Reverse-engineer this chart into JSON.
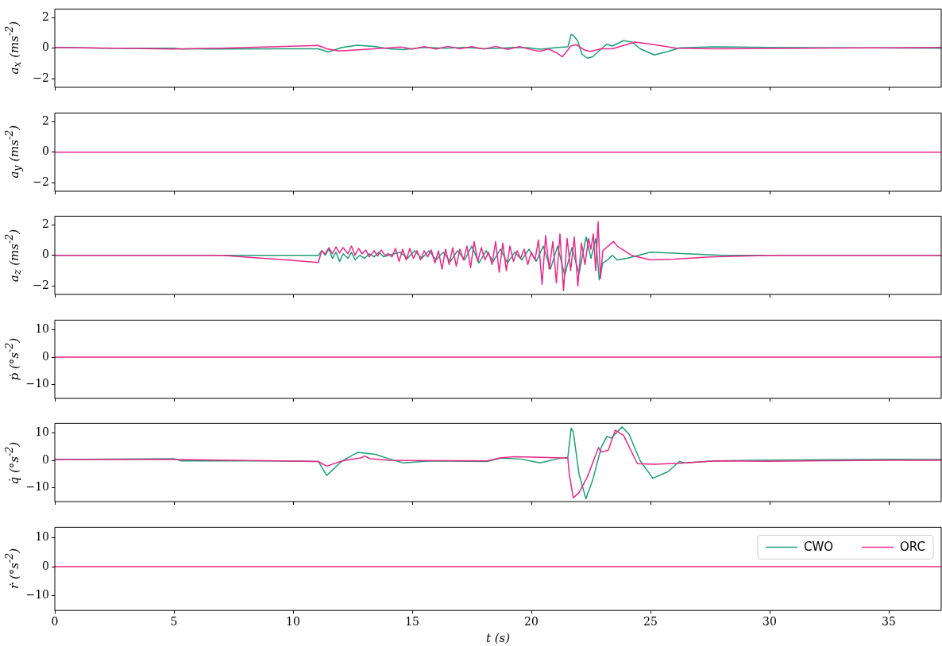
{
  "chart_data": [
    {
      "type": "line",
      "ylabel": "a$_{x}$ (ms$^{-2}$)",
      "xlim": [
        0,
        37.2
      ],
      "xticks": [
        0,
        5,
        10,
        15,
        20,
        25,
        30,
        35
      ],
      "ylim": [
        -2.55,
        2.55
      ],
      "yticks": [
        -2,
        0,
        2
      ],
      "tick_labels": "y",
      "grid": false,
      "series": [
        {
          "color": "#1b9e77",
          "x": [
            0,
            2,
            5,
            5.3,
            9.37,
            11.06,
            11.47,
            12.06,
            12.7,
            13.46,
            14.05,
            14.63,
            15.5,
            16.38,
            17.2,
            18.0,
            18.72,
            19.3,
            19.89,
            20.36,
            21.06,
            21.53,
            21.67,
            21.76,
            21.94,
            22.12,
            22.35,
            22.58,
            22.93,
            23.17,
            23.4,
            23.87,
            24.22,
            24.57,
            25.16,
            25.74,
            26.21,
            27.71,
            30,
            37.2
          ],
          "values": [
            0.05,
            0,
            0,
            -0.05,
            -0.04,
            -0.04,
            -0.25,
            0.05,
            0.19,
            0.1,
            -0.04,
            -0.09,
            0.05,
            0,
            0.05,
            -0.03,
            0,
            0.05,
            0.02,
            -0.07,
            0.04,
            0.09,
            0.88,
            0.84,
            0.49,
            -0.39,
            -0.65,
            -0.56,
            -0.04,
            0.26,
            0.14,
            0.49,
            0.4,
            -0.04,
            -0.44,
            -0.21,
            0.02,
            0.09,
            0.05,
            0
          ]
        },
        {
          "color": "#e7298a",
          "x": [
            0,
            5,
            7,
            9.37,
            11.06,
            11.41,
            11.94,
            12.88,
            13.81,
            14.5,
            15.0,
            15.5,
            16.0,
            16.5,
            17.0,
            17.5,
            18.0,
            18.5,
            19.0,
            19.5,
            20.0,
            20.36,
            20.7,
            21.06,
            21.3,
            21.53,
            21.65,
            21.88,
            22.23,
            22.47,
            22.93,
            23.4,
            24.34,
            25.16,
            26.09,
            27.71,
            37.2
          ],
          "values": [
            0.05,
            -0.05,
            0,
            0.1,
            0.18,
            -0.04,
            -0.18,
            -0.09,
            0,
            0.08,
            -0.06,
            0.1,
            -0.05,
            0.12,
            -0.04,
            0.1,
            -0.06,
            0.12,
            -0.08,
            0.1,
            -0.1,
            -0.21,
            -0.05,
            -0.3,
            -0.56,
            -0.12,
            0.14,
            0.23,
            -0.12,
            -0.21,
            -0.04,
            -0.04,
            0.4,
            0.23,
            0,
            -0.04,
            0.05
          ]
        }
      ]
    },
    {
      "type": "line",
      "ylabel": "a$_{y}$ (ms$^{-2}$)",
      "xlim": [
        0,
        37.2
      ],
      "xticks": [
        0,
        5,
        10,
        15,
        20,
        25,
        30,
        35
      ],
      "ylim": [
        -2.55,
        2.55
      ],
      "yticks": [
        -2,
        0,
        2
      ],
      "tick_labels": "y",
      "grid": false,
      "series": [
        {
          "color": "#1b9e77",
          "values": [
            null,
            null
          ]
        },
        {
          "color": "#e7298a",
          "x": [
            0,
            37.2
          ],
          "values": [
            0,
            0
          ]
        }
      ]
    },
    {
      "type": "line",
      "ylabel": "a$_{z}$ (ms$^{-2}$)",
      "xlim": [
        0,
        37.2
      ],
      "xticks": [
        0,
        5,
        10,
        15,
        20,
        25,
        30,
        35
      ],
      "ylim": [
        -2.55,
        2.55
      ],
      "yticks": [
        -2,
        0,
        2
      ],
      "tick_labels": "y",
      "grid": false,
      "series": [
        {
          "color": "#1b9e77",
          "x": [
            0,
            11.06,
            11.2,
            11.35,
            11.5,
            11.65,
            11.8,
            11.95,
            12.1,
            12.3,
            12.45,
            12.6,
            12.8,
            13.0,
            13.2,
            13.4,
            13.6,
            13.8,
            14.0,
            14.5,
            14.8,
            15.1,
            15.4,
            15.7,
            16.0,
            16.3,
            16.6,
            16.9,
            17.2,
            17.5,
            17.8,
            18.1,
            18.4,
            18.7,
            19.0,
            19.3,
            19.6,
            19.9,
            20.2,
            20.5,
            20.8,
            21.1,
            21.4,
            21.7,
            22.0,
            22.3,
            22.5,
            22.7,
            22.85,
            23.0,
            23.2,
            23.4,
            23.6,
            24.0,
            24.5,
            25.0,
            25.8,
            26.5,
            28,
            37.2
          ],
          "values": [
            0,
            0,
            0.3,
            0,
            0.4,
            -0.2,
            0.2,
            -0.4,
            0.1,
            -0.2,
            0.2,
            -0.3,
            0,
            -0.2,
            0.1,
            -0.1,
            0.2,
            -0.1,
            0,
            0.2,
            -0.2,
            0.3,
            -0.2,
            0.3,
            -0.3,
            0.2,
            -0.4,
            0.3,
            -0.3,
            0.6,
            -0.5,
            0.3,
            -0.4,
            0.4,
            -0.5,
            0.2,
            -0.3,
            0.4,
            -0.4,
            0.6,
            -0.9,
            0.6,
            -1.3,
            0.5,
            -1.2,
            1.2,
            -0.2,
            1.1,
            -1.6,
            -0.5,
            -0.3,
            0,
            -0.3,
            -0.2,
            0,
            0.2,
            0.15,
            0.1,
            0,
            0
          ]
        },
        {
          "color": "#e7298a",
          "x": [
            0,
            7,
            9.7,
            11.06,
            11.2,
            11.35,
            11.5,
            11.65,
            11.8,
            11.95,
            12.1,
            12.3,
            12.45,
            12.6,
            12.75,
            12.9,
            13.05,
            13.2,
            13.4,
            13.55,
            13.7,
            13.85,
            14.0,
            14.15,
            14.3,
            14.45,
            14.6,
            14.75,
            14.9,
            15.05,
            15.2,
            15.35,
            15.5,
            15.65,
            15.8,
            15.95,
            16.1,
            16.25,
            16.4,
            16.55,
            16.7,
            16.85,
            17.0,
            17.15,
            17.3,
            17.45,
            17.6,
            17.75,
            17.9,
            18.05,
            18.2,
            18.35,
            18.5,
            18.65,
            18.8,
            18.95,
            19.1,
            19.25,
            19.4,
            19.55,
            19.7,
            19.85,
            20.0,
            20.15,
            20.3,
            20.45,
            20.6,
            20.75,
            20.9,
            21.05,
            21.2,
            21.35,
            21.5,
            21.65,
            21.8,
            21.95,
            22.1,
            22.25,
            22.4,
            22.5,
            22.6,
            22.7,
            22.8,
            22.9,
            23.0,
            23.15,
            23.3,
            23.45,
            23.6,
            24.2,
            25.0,
            26.0,
            27.5,
            30,
            37.2
          ],
          "values": [
            0,
            0,
            -0.3,
            -0.47,
            0.3,
            0.1,
            0.5,
            0.1,
            0.55,
            0.15,
            0.5,
            0.1,
            0.6,
            0,
            0.45,
            0.1,
            0.35,
            -0.1,
            0.3,
            -0.05,
            0.35,
            0,
            0.1,
            -0.1,
            0.45,
            -0.4,
            0.4,
            -0.3,
            0.45,
            -0.2,
            0.3,
            -0.3,
            0.3,
            -0.1,
            0.35,
            -0.5,
            0.3,
            -0.9,
            0.4,
            -0.6,
            0.5,
            -0.7,
            0.4,
            -0.3,
            0.6,
            -0.8,
            0.9,
            -0.4,
            0.5,
            -0.3,
            0.2,
            -0.6,
            0.9,
            -1.1,
            0.8,
            -1.0,
            0.6,
            -0.4,
            0.3,
            -0.2,
            0.4,
            -0.6,
            0.2,
            -0.3,
            1.0,
            -1.9,
            1.3,
            -0.9,
            0.9,
            -1.8,
            1.4,
            -2.3,
            1.1,
            -1.0,
            1.2,
            -2.0,
            0.8,
            -0.6,
            1.1,
            0.4,
            1.4,
            -1.0,
            2.2,
            -1.5,
            0.3,
            0.5,
            0.7,
            0.9,
            0.6,
            0,
            -0.3,
            -0.25,
            -0.1,
            0,
            0
          ]
        }
      ]
    },
    {
      "type": "line",
      "ylabel": "ṗ (°s$^{-2}$)",
      "xlim": [
        0,
        37.2
      ],
      "xticks": [
        0,
        5,
        10,
        15,
        20,
        25,
        30,
        35
      ],
      "ylim": [
        -15,
        13.5
      ],
      "yticks": [
        -10,
        0,
        10
      ],
      "tick_labels": "y",
      "grid": false,
      "series": [
        {
          "color": "#1b9e77",
          "values": [
            null,
            null
          ]
        },
        {
          "color": "#e7298a",
          "x": [
            0,
            37.2
          ],
          "values": [
            0,
            0
          ]
        }
      ]
    },
    {
      "type": "line",
      "ylabel": "q̇ (°s$^{-2}$)",
      "xlim": [
        0,
        37.2
      ],
      "xticks": [
        0,
        5,
        10,
        15,
        20,
        25,
        30,
        35
      ],
      "ylim": [
        -15,
        13.5
      ],
      "yticks": [
        -10,
        0,
        10
      ],
      "tick_labels": "y",
      "grid": false,
      "series": [
        {
          "color": "#1b9e77",
          "x": [
            0,
            5,
            5.3,
            9.37,
            11.06,
            11.41,
            12.06,
            12.7,
            13.46,
            14.05,
            14.63,
            15.8,
            18.14,
            18.72,
            19.54,
            20.36,
            21.06,
            21.53,
            21.67,
            21.76,
            22.0,
            22.29,
            22.58,
            22.93,
            23.17,
            23.35,
            23.81,
            24.1,
            24.57,
            25.1,
            25.74,
            26.21,
            26.44,
            27.71,
            30,
            35,
            37.2
          ],
          "values": [
            0.3,
            0.6,
            -0.2,
            -0.2,
            -0.4,
            -5.5,
            -0.2,
            2.9,
            2.2,
            0.5,
            -0.9,
            -0.2,
            -0.4,
            0.8,
            0.5,
            -0.9,
            0.5,
            1.1,
            11.7,
            10.3,
            -5.0,
            -14.0,
            -7.0,
            4.7,
            8.8,
            8.1,
            12.2,
            9.5,
            -0.2,
            -6.5,
            -4.1,
            -0.4,
            -0.9,
            -0.2,
            0.1,
            0.4,
            0.3
          ]
        },
        {
          "color": "#e7298a",
          "x": [
            0,
            5,
            9.37,
            11.06,
            11.41,
            12.06,
            12.88,
            13.0,
            13.23,
            14.05,
            18.14,
            18.72,
            19.31,
            21.06,
            21.53,
            21.59,
            21.76,
            22.0,
            22.35,
            22.82,
            22.93,
            23.23,
            23.52,
            23.87,
            24.45,
            25.16,
            26.33,
            27.71,
            30,
            35,
            37.2
          ],
          "values": [
            0.3,
            0.3,
            -0.2,
            -0.4,
            -2.1,
            -0.2,
            1.0,
            1.6,
            0.6,
            0,
            -0.2,
            1.0,
            1.3,
            1.0,
            0.8,
            -5.0,
            -13.6,
            -11.8,
            -6.0,
            4.7,
            3.0,
            3.7,
            11.0,
            9.1,
            -1.2,
            -1.4,
            -1.0,
            -0.2,
            -0.3,
            0,
            0
          ]
        }
      ]
    },
    {
      "type": "line",
      "ylabel": "ṙ (°s$^{-2}$)",
      "xlabel": "t (s)",
      "xlim": [
        0,
        37.2
      ],
      "xticks": [
        0,
        5,
        10,
        15,
        20,
        25,
        30,
        35
      ],
      "ylim": [
        -15,
        13.5
      ],
      "yticks": [
        -10,
        0,
        10
      ],
      "grid": false,
      "legend": "top right",
      "series": [
        {
          "name": "CWO",
          "color": "#1b9e77",
          "values": [
            null,
            null
          ]
        },
        {
          "name": "ORC",
          "color": "#e7298a",
          "x": [
            0,
            37.2
          ],
          "values": [
            0,
            0
          ]
        }
      ]
    }
  ]
}
